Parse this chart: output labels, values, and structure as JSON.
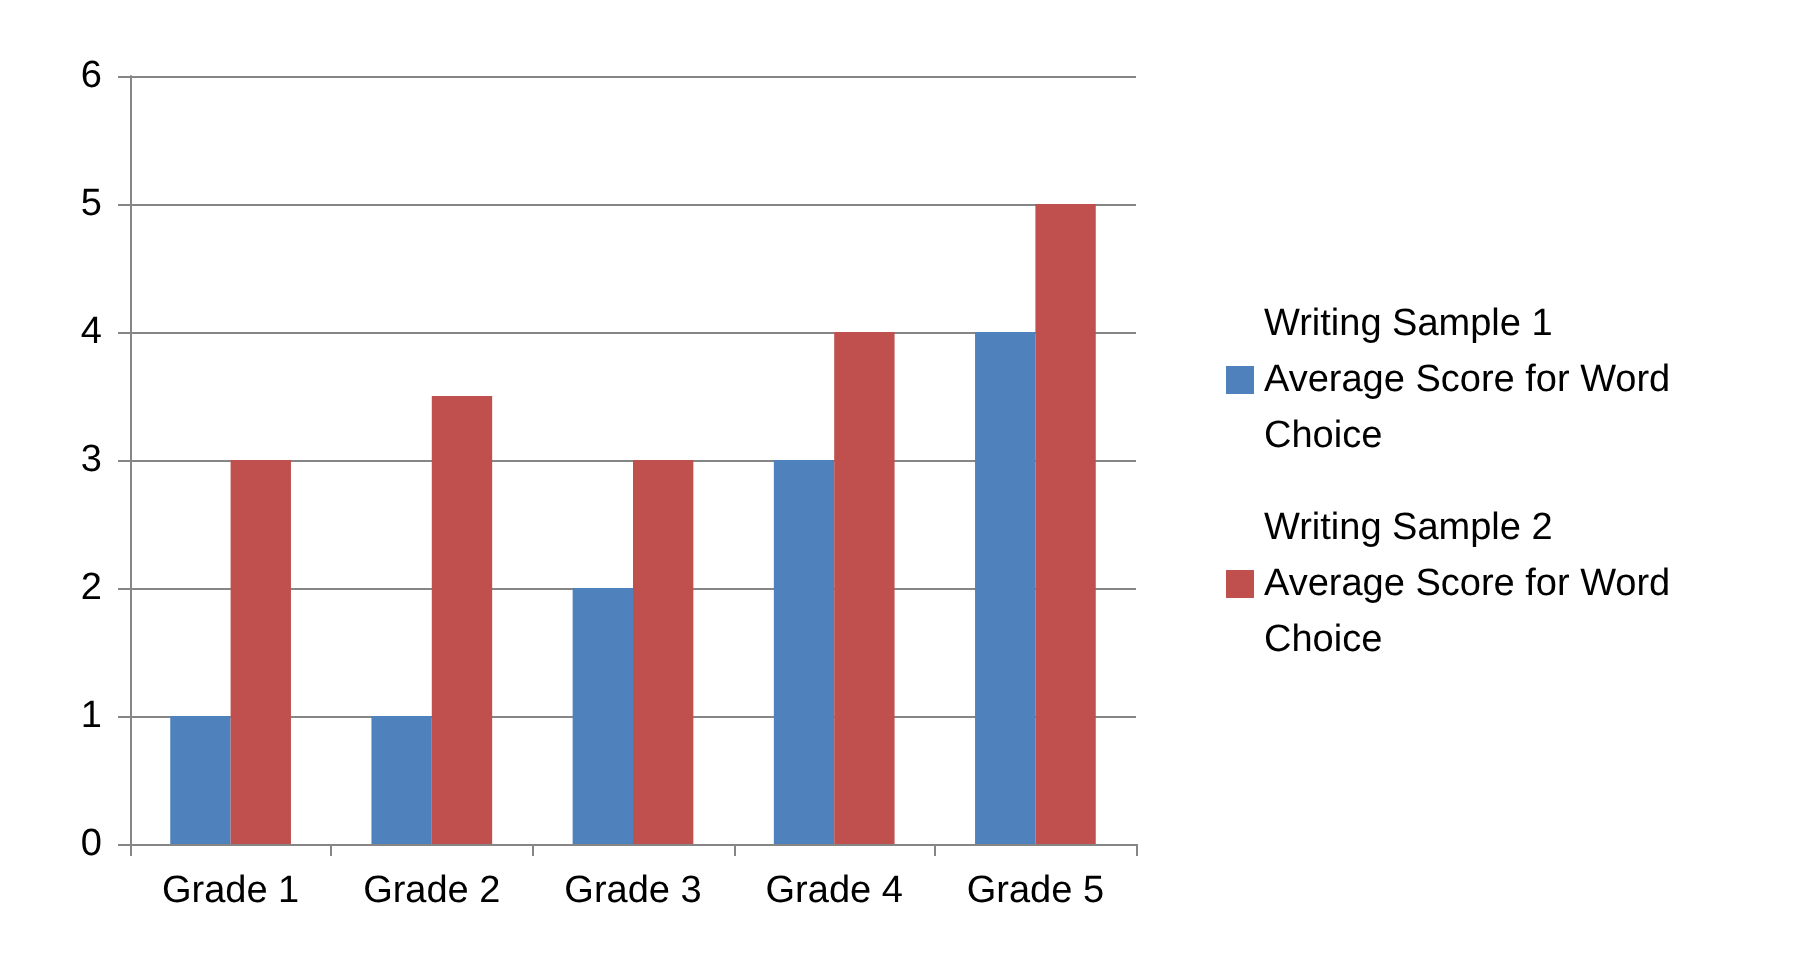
{
  "chart_data": {
    "type": "bar",
    "categories": [
      "Grade 1",
      "Grade 2",
      "Grade 3",
      "Grade 4",
      "Grade 5"
    ],
    "series": [
      {
        "name": "Writing Sample 1 Average Score for Word Choice",
        "color": "#4f81bd",
        "values": [
          1,
          1,
          2,
          3,
          4
        ]
      },
      {
        "name": "Writing Sample 2 Average Score for Word Choice",
        "color": "#c0504d",
        "values": [
          3,
          3.5,
          3,
          4,
          5
        ]
      }
    ],
    "ylim": [
      0,
      6
    ],
    "yticks": [
      0,
      1,
      2,
      3,
      4,
      5,
      6
    ],
    "grid": "y",
    "legend": "right"
  }
}
